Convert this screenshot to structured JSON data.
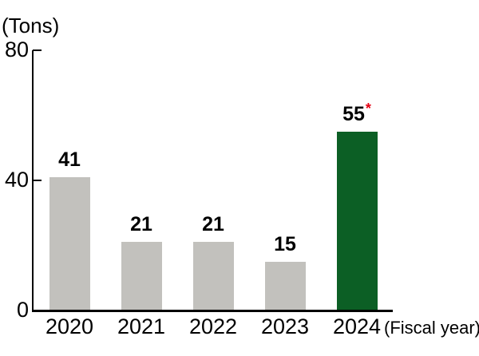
{
  "chart_data": {
    "type": "bar",
    "title": "",
    "ylabel": "(Tons)",
    "xlabel": "(Fiscal year)",
    "categories": [
      "2020",
      "2021",
      "2022",
      "2023",
      "2024"
    ],
    "values": [
      41,
      21,
      21,
      15,
      55
    ],
    "ylim": [
      0,
      80
    ],
    "y_ticks": [
      0,
      40,
      80
    ],
    "grid": false,
    "legend": "none",
    "default_bar_color": "#c2c1bd",
    "highlight_bar_color": "#0c5f25",
    "bar_colors": [
      "#c2c1bd",
      "#c2c1bd",
      "#c2c1bd",
      "#c2c1bd",
      "#0c5f25"
    ],
    "axis_color": "#000000",
    "text_color": "#000000",
    "annotations": [
      {
        "category": "2024",
        "text": "*",
        "color": "#e60012"
      }
    ]
  }
}
